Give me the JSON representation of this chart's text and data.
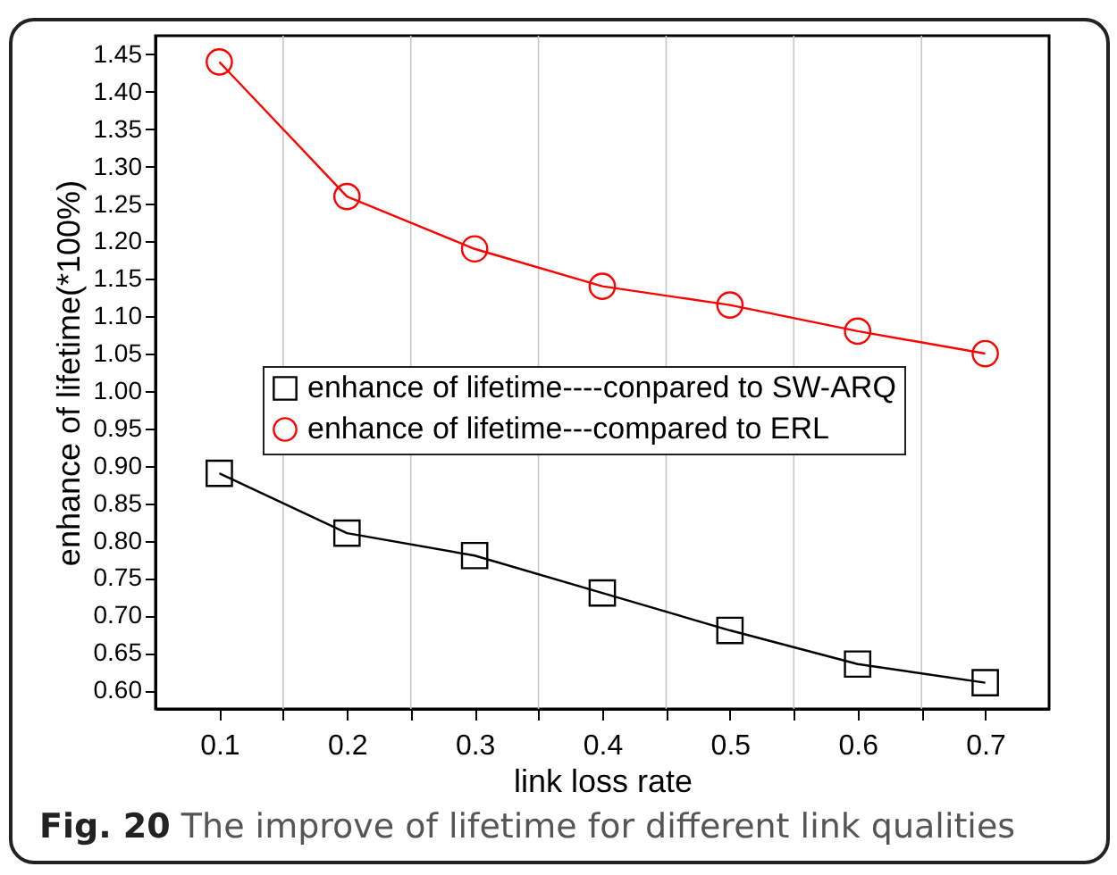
{
  "chart_data": {
    "type": "line",
    "xlabel": "link loss rate",
    "ylabel": "enhance of lifetime(*100%)",
    "annotations": [
      "Fig. 20 The improve of lifetime for different link qualities"
    ],
    "x": [
      0.1,
      0.2,
      0.3,
      0.4,
      0.5,
      0.6,
      0.7
    ],
    "series": [
      {
        "name": "enhance of lifetime----conpared to SW-ARQ",
        "color": "#000000",
        "marker": "square",
        "values": [
          0.89,
          0.81,
          0.78,
          0.73,
          0.68,
          0.635,
          0.61
        ]
      },
      {
        "name": "enhance of lifetime---compared to ERL",
        "color": "#ff0000",
        "marker": "circle",
        "values": [
          1.44,
          1.26,
          1.19,
          1.14,
          1.115,
          1.08,
          1.05
        ]
      }
    ],
    "xlim": [
      0.05,
      0.75
    ],
    "xticks": [
      0.1,
      {
        "value": 0.15,
        "label": null
      },
      0.2,
      {
        "value": 0.25,
        "label": null
      },
      0.3,
      {
        "value": 0.35,
        "label": null
      },
      0.4,
      {
        "value": 0.45,
        "label": null
      },
      0.5,
      {
        "value": 0.55,
        "label": null
      },
      0.6,
      {
        "value": 0.65,
        "label": null
      },
      0.7
    ],
    "ylim": [
      0.575,
      1.475
    ],
    "yticks": [
      {
        "value": 0.6,
        "label": "0.60"
      },
      {
        "value": 0.65,
        "label": "0.65"
      },
      {
        "value": 0.7,
        "label": "0.70"
      },
      {
        "value": 0.75,
        "label": "0.75"
      },
      {
        "value": 0.8,
        "label": "0.80"
      },
      {
        "value": 0.85,
        "label": "0.85"
      },
      {
        "value": 0.9,
        "label": "0.90"
      },
      {
        "value": 0.95,
        "label": "0.95"
      },
      {
        "value": 1.0,
        "label": "1.00"
      },
      {
        "value": 1.05,
        "label": "1.05"
      },
      {
        "value": 1.1,
        "label": "1.10"
      },
      {
        "value": 1.15,
        "label": "1.15"
      },
      {
        "value": 1.2,
        "label": "1.20"
      },
      {
        "value": 1.25,
        "label": "1.25"
      },
      {
        "value": 1.3,
        "label": "1.30"
      },
      {
        "value": 1.35,
        "label": "1.35"
      },
      {
        "value": 1.4,
        "label": "1.40"
      },
      {
        "value": 1.45,
        "label": "1.45"
      }
    ],
    "grid": "x",
    "legend": "center",
    "line_style": "solid"
  }
}
